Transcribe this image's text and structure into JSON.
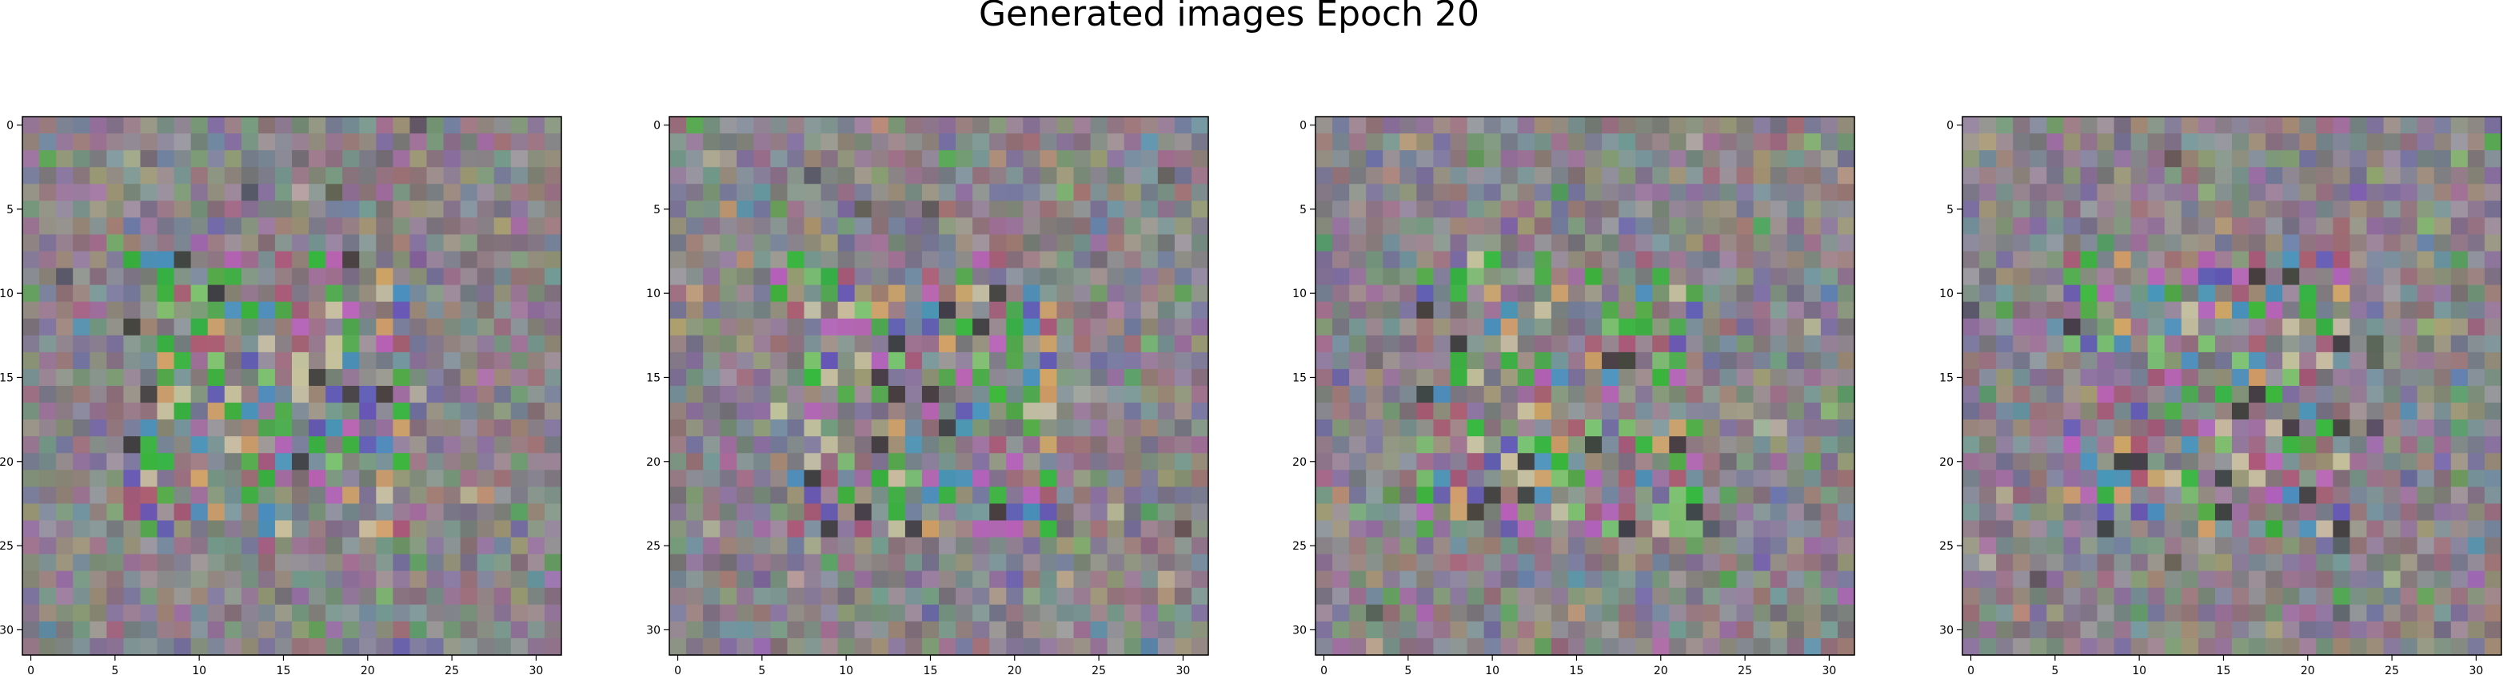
{
  "figure": {
    "title": "Generated images Epoch 20"
  },
  "chart_data": {
    "type": "heatmap",
    "title": "Generated images Epoch 20",
    "panel_count": 4,
    "grid_size": [
      32,
      32
    ],
    "xlim": [
      -0.5,
      31.5
    ],
    "ylim": [
      31.5,
      -0.5
    ],
    "x_ticks": [
      0,
      5,
      10,
      15,
      20,
      25,
      30
    ],
    "y_ticks": [
      0,
      5,
      10,
      15,
      20,
      25,
      30
    ],
    "grid": false,
    "base_color": "#8a848a",
    "accent_colors": [
      "#3fb53a",
      "#c35cc4",
      "#5a4fc0",
      "#78d26a",
      "#d7cfa6",
      "#2e2e2e",
      "#22c22a",
      "#3a96c8",
      "#e2a860",
      "#b05070"
    ]
  }
}
